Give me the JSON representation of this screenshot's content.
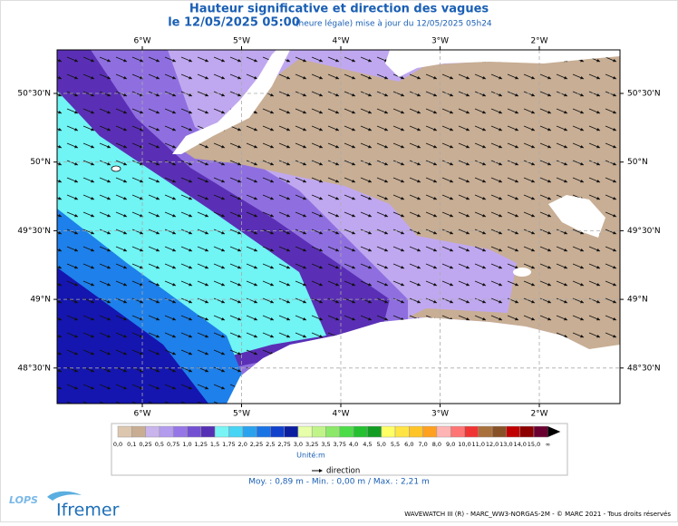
{
  "header": {
    "title": "Hauteur significative et direction des vagues",
    "date": "le 12/05/2025 05:00",
    "update": "(heure légale) mise à jour du 12/05/2025 05h24"
  },
  "map": {
    "lon_labels": [
      "6°W",
      "5°W",
      "4°W",
      "3°W",
      "2°W"
    ],
    "lat_labels": [
      "50°30'N",
      "50°N",
      "49°30'N",
      "49°N",
      "48°30'N"
    ]
  },
  "legend": {
    "labels": [
      "0,0",
      "0,1",
      "0,25",
      "0,5",
      "0,75",
      "1,0",
      "1,25",
      "1,5",
      "1,75",
      "2,0",
      "2,25",
      "2,5",
      "2,75",
      "3,0",
      "3,25",
      "3,5",
      "3,75",
      "4,0",
      "4,5",
      "5,0",
      "5,5",
      "6,0",
      "7,0",
      "8,0",
      "9,0",
      "10,0",
      "11,0",
      "12,0",
      "13,0",
      "14,0",
      "15,0",
      "∞"
    ],
    "colors": [
      "#dcc6ae",
      "#c8ad93",
      "#c9b4ec",
      "#b39bee",
      "#9676e6",
      "#7350d2",
      "#5530b4",
      "#78f4f4",
      "#48d4f4",
      "#2aa2ee",
      "#1a74e4",
      "#1040cc",
      "#0b1ea0",
      "#e6ffa8",
      "#c0f488",
      "#8ce868",
      "#4cdc48",
      "#24c030",
      "#129c22",
      "#ffff66",
      "#ffe444",
      "#ffc428",
      "#ffa020",
      "#ffb4b4",
      "#ff7474",
      "#f03434",
      "#a8703a",
      "#885026",
      "#c00000",
      "#8c0000",
      "#6a0030"
    ],
    "unit": "Unité:m",
    "direction": "direction"
  },
  "stats": "Moy. : 0,89 m   -   Min. : 0,00 m / Max. : 2,21 m",
  "footer": "WAVEWATCH III (R) - MARC_WW3-NORGAS-2M - © MARC 2021 - Tous droits réservés",
  "logos": [
    "LOPS",
    "Ifremer"
  ]
}
